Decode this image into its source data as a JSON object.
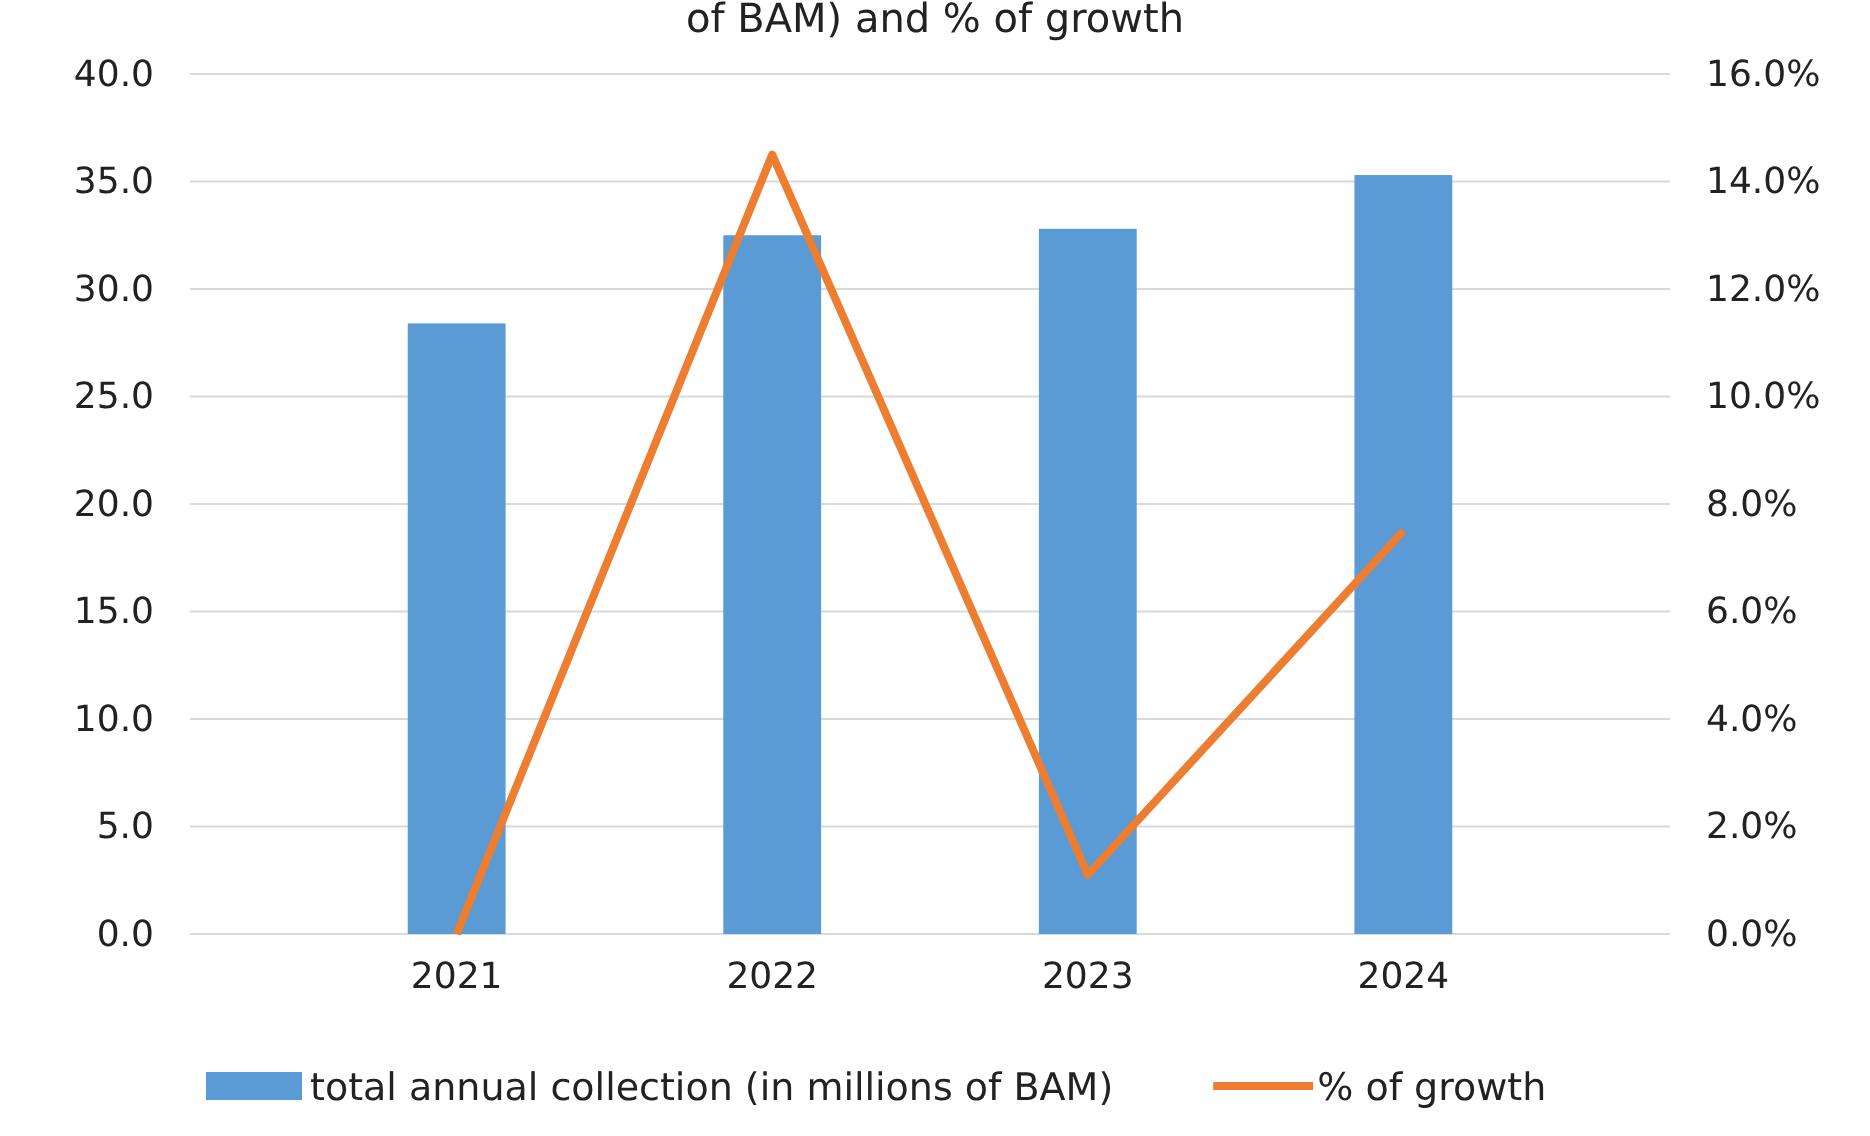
{
  "chart_data": {
    "type": "bar",
    "title": "of BAM) and % of growth",
    "categories": [
      "2021",
      "2022",
      "2023",
      "2024"
    ],
    "series": [
      {
        "name": "total annual collection (in millions of BAM)",
        "color": "#5b9bd5",
        "values": [
          28.4,
          32.5,
          32.8,
          35.3
        ]
      },
      {
        "name": "% of growth",
        "type": "line",
        "axis": "y2",
        "color": "#ed7d31",
        "values": [
          0,
          14.5,
          1.1,
          7.5
        ]
      }
    ],
    "ylim": [
      0,
      40
    ],
    "yticks": [
      {
        "value": 0,
        "label": "0.0"
      },
      {
        "value": 5,
        "label": "5.0"
      },
      {
        "value": 10,
        "label": "10.0"
      },
      {
        "value": 15,
        "label": "15.0"
      },
      {
        "value": 20,
        "label": "20.0"
      },
      {
        "value": 25,
        "label": "25.0"
      },
      {
        "value": 30,
        "label": "30.0"
      },
      {
        "value": 35,
        "label": "35.0"
      },
      {
        "value": 40,
        "label": "40.0"
      }
    ],
    "y2lim": [
      0,
      16
    ],
    "y2ticks": [
      {
        "value": 0,
        "label": "0.0%"
      },
      {
        "value": 2,
        "label": "2.0%"
      },
      {
        "value": 4,
        "label": "4.0%"
      },
      {
        "value": 6,
        "label": "6.0%"
      },
      {
        "value": 8,
        "label": "8.0%"
      },
      {
        "value": 10,
        "label": "10.0%"
      },
      {
        "value": 12,
        "label": "12.0%"
      },
      {
        "value": 14,
        "label": "14.0%"
      },
      {
        "value": 16,
        "label": "16.0%"
      }
    ],
    "grid": "y",
    "legend": "bottom"
  }
}
